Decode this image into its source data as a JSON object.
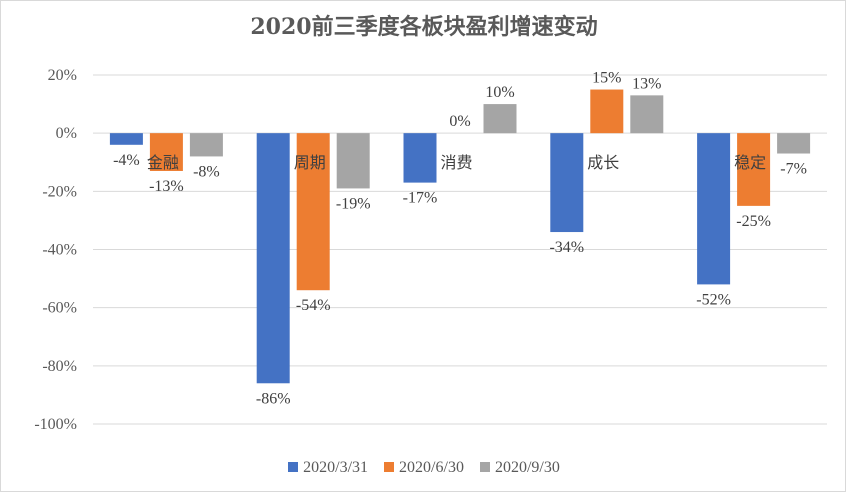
{
  "chart_data": {
    "type": "bar",
    "title": "2020前三季度各板块盈利增速变动",
    "categories": [
      "金融",
      "周期",
      "消费",
      "成长",
      "稳定"
    ],
    "series": [
      {
        "name": "2020/3/31",
        "values": [
          -4,
          -86,
          -17,
          -34,
          -52
        ],
        "color": "#4472C4"
      },
      {
        "name": "2020/6/30",
        "values": [
          -13,
          -54,
          0,
          15,
          -25
        ],
        "color": "#ED7D31"
      },
      {
        "name": "2020/9/30",
        "values": [
          -8,
          -19,
          10,
          13,
          -7
        ],
        "color": "#A5A5A5"
      }
    ],
    "ylim": [
      -100,
      20
    ],
    "yticks": [
      20,
      0,
      -20,
      -40,
      -60,
      -80,
      -100
    ],
    "ytick_labels": [
      "20%",
      "0%",
      "-20%",
      "-40%",
      "-60%",
      "-80%",
      "-100%"
    ],
    "value_suffix": "%",
    "grid": true,
    "legend_position": "bottom",
    "xlabel": "",
    "ylabel": ""
  }
}
